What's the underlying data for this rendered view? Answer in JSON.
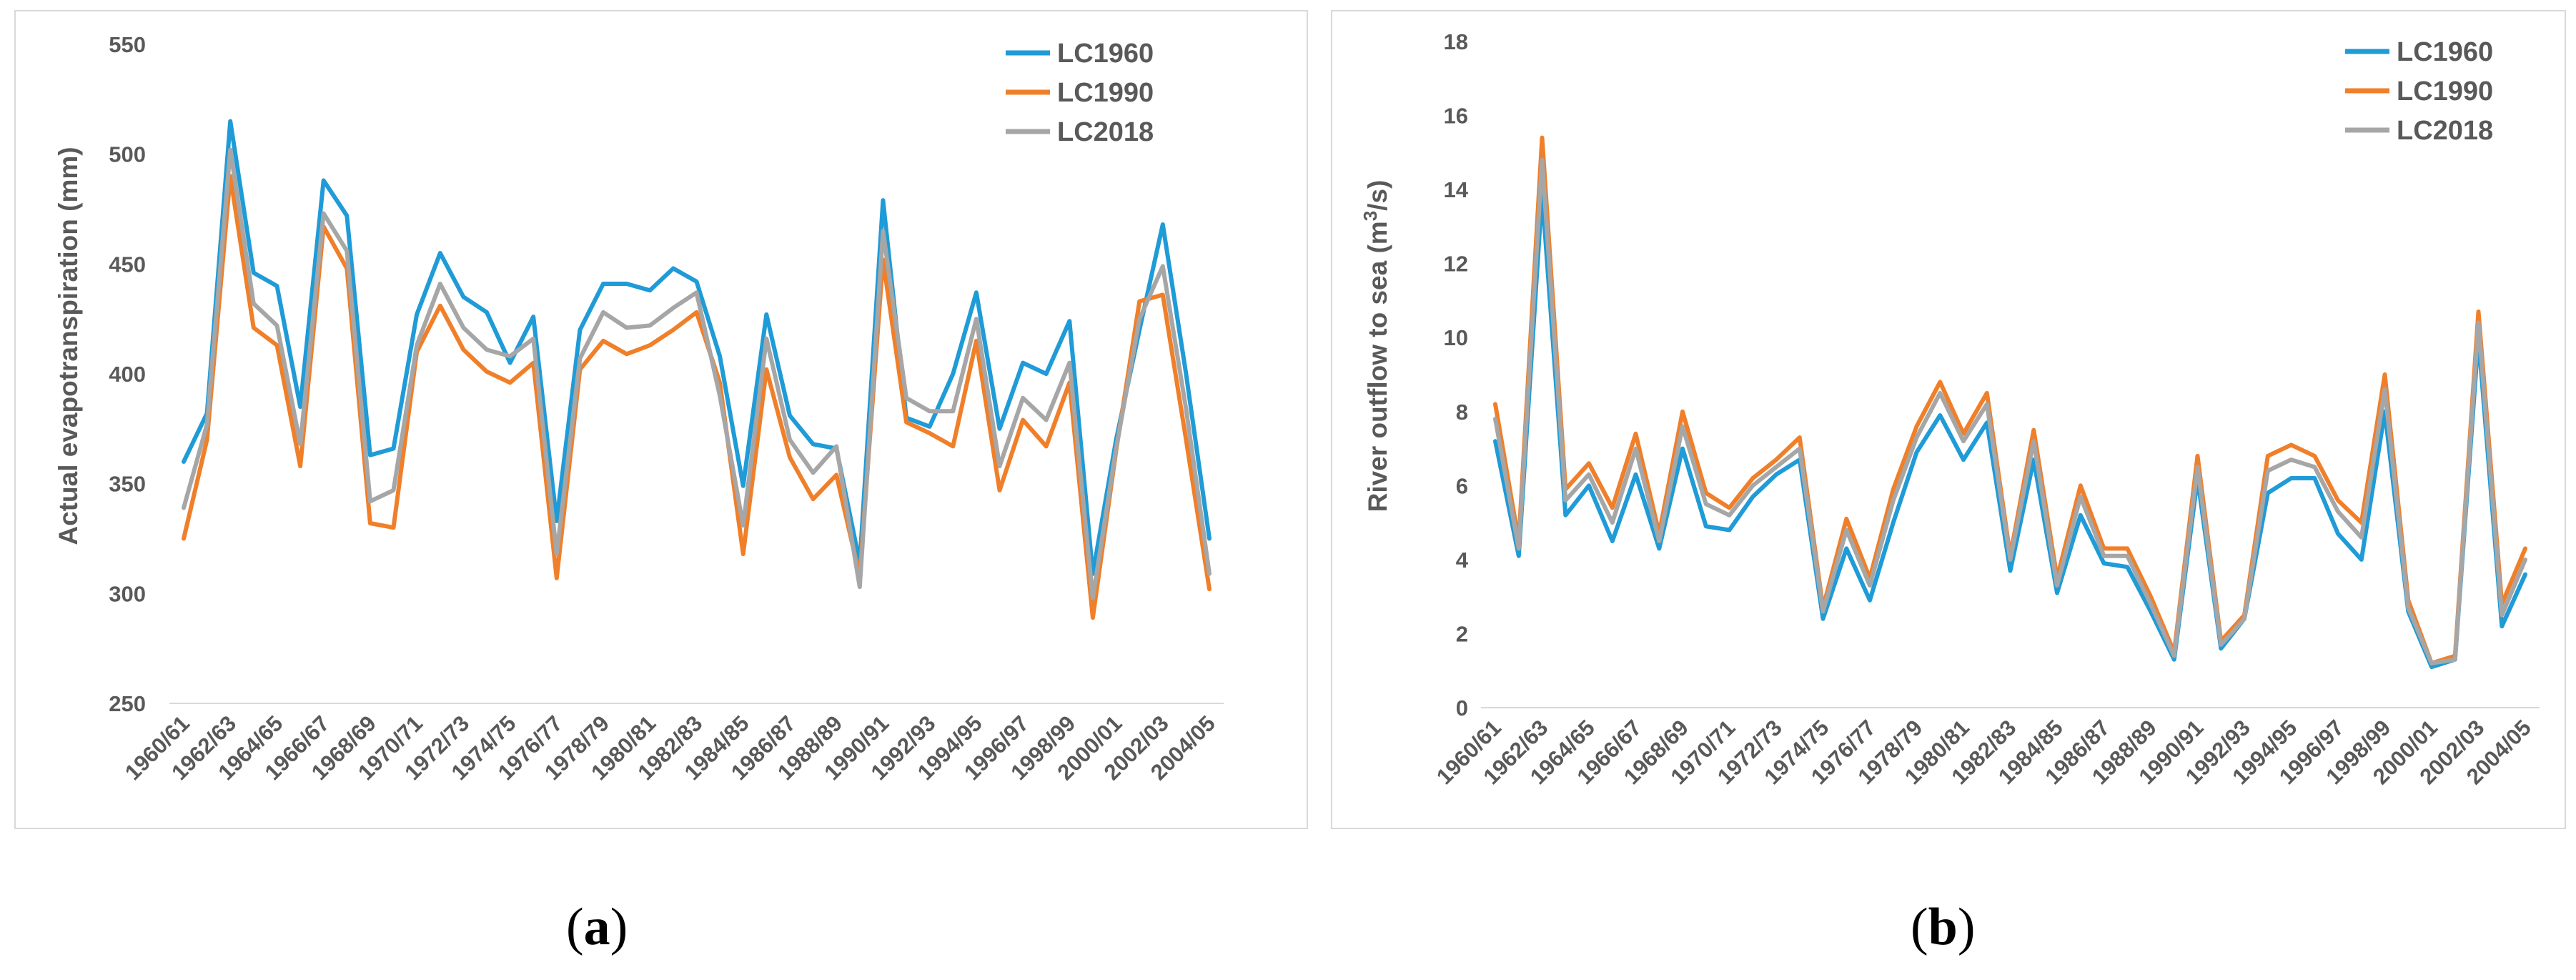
{
  "colors": {
    "LC1960": "#1f9bd7",
    "LC1990": "#f07f2a",
    "LC2018": "#a6a6a6",
    "axis": "#d9d9d9",
    "text": "#595959"
  },
  "captions": {
    "a_open": "(",
    "a_letter": "a",
    "a_close": ")",
    "b_open": "(",
    "b_letter": "b",
    "b_close": ")"
  },
  "chart_data": [
    {
      "type": "line",
      "id": "a",
      "ylabel": "Actual evapotranspiration (mm)",
      "xlabel": "",
      "ylim": [
        250,
        550
      ],
      "yticks": [
        250,
        300,
        350,
        400,
        450,
        500,
        550
      ],
      "legend_position": "top-right",
      "categories": [
        "1960/61",
        "1961/62",
        "1962/63",
        "1963/64",
        "1964/65",
        "1965/66",
        "1966/67",
        "1967/68",
        "1968/69",
        "1969/70",
        "1970/71",
        "1971/72",
        "1972/73",
        "1973/74",
        "1974/75",
        "1975/76",
        "1976/77",
        "1977/78",
        "1978/79",
        "1979/80",
        "1980/81",
        "1981/82",
        "1982/83",
        "1983/84",
        "1984/85",
        "1985/86",
        "1986/87",
        "1987/88",
        "1988/89",
        "1989/90",
        "1990/91",
        "1991/92",
        "1992/93",
        "1993/94",
        "1994/95",
        "1995/96",
        "1996/97",
        "1997/98",
        "1998/99",
        "1999/00",
        "2000/01",
        "2001/02",
        "2002/03",
        "2003/04",
        "2004/05"
      ],
      "tick_labels": [
        "1960/61",
        "1962/63",
        "1964/65",
        "1966/67",
        "1968/69",
        "1970/71",
        "1972/73",
        "1974/75",
        "1976/77",
        "1978/79",
        "1980/81",
        "1982/83",
        "1984/85",
        "1986/87",
        "1988/89",
        "1990/91",
        "1992/93",
        "1994/95",
        "1996/97",
        "1998/99",
        "2000/01",
        "2002/03",
        "2004/05"
      ],
      "series": [
        {
          "name": "LC1960",
          "values": [
            360,
            382,
            515,
            446,
            440,
            385,
            488,
            472,
            363,
            366,
            427,
            455,
            435,
            428,
            405,
            426,
            333,
            420,
            441,
            441,
            438,
            448,
            442,
            408,
            349,
            427,
            381,
            368,
            366,
            314,
            479,
            380,
            376,
            400,
            437,
            375,
            405,
            400,
            424,
            309,
            370,
            420,
            468,
            400,
            325
          ]
        },
        {
          "name": "LC1990",
          "values": [
            325,
            370,
            490,
            421,
            413,
            358,
            467,
            448,
            332,
            330,
            410,
            431,
            411,
            401,
            396,
            405,
            307,
            402,
            415,
            409,
            413,
            420,
            428,
            396,
            318,
            402,
            362,
            343,
            354,
            308,
            452,
            378,
            373,
            367,
            415,
            347,
            379,
            367,
            396,
            289,
            365,
            433,
            436,
            370,
            302
          ]
        },
        {
          "name": "LC2018",
          "values": [
            339,
            377,
            502,
            432,
            422,
            368,
            473,
            456,
            342,
            347,
            413,
            441,
            421,
            411,
            408,
            416,
            318,
            407,
            428,
            421,
            422,
            430,
            437,
            390,
            331,
            416,
            370,
            355,
            367,
            303,
            465,
            389,
            383,
            383,
            425,
            358,
            389,
            379,
            405,
            298,
            366,
            425,
            449,
            384,
            309
          ]
        }
      ]
    },
    {
      "type": "line",
      "id": "b",
      "ylabel_pre": "River outflow to sea (m",
      "ylabel_sup": "3",
      "ylabel_post": "/s)",
      "xlabel": "",
      "ylim": [
        0,
        18
      ],
      "yticks": [
        0,
        2,
        4,
        6,
        8,
        10,
        12,
        14,
        16,
        18
      ],
      "legend_position": "top-right",
      "categories": [
        "1960/61",
        "1961/62",
        "1962/63",
        "1963/64",
        "1964/65",
        "1965/66",
        "1966/67",
        "1967/68",
        "1968/69",
        "1969/70",
        "1970/71",
        "1971/72",
        "1972/73",
        "1973/74",
        "1974/75",
        "1975/76",
        "1976/77",
        "1977/78",
        "1978/79",
        "1979/80",
        "1980/81",
        "1981/82",
        "1982/83",
        "1983/84",
        "1984/85",
        "1985/86",
        "1986/87",
        "1987/88",
        "1988/89",
        "1989/90",
        "1990/91",
        "1991/92",
        "1992/93",
        "1993/94",
        "1994/95",
        "1995/96",
        "1996/97",
        "1997/98",
        "1998/99",
        "1999/00",
        "2000/01",
        "2001/02",
        "2002/03",
        "2003/04",
        "2004/05"
      ],
      "tick_labels": [
        "1960/61",
        "1962/63",
        "1964/65",
        "1966/67",
        "1968/69",
        "1970/71",
        "1972/73",
        "1974/75",
        "1976/77",
        "1978/79",
        "1980/81",
        "1982/83",
        "1984/85",
        "1986/87",
        "1988/89",
        "1990/91",
        "1992/93",
        "1994/95",
        "1996/97",
        "1998/99",
        "2000/01",
        "2002/03",
        "2004/05"
      ],
      "series": [
        {
          "name": "LC1960",
          "values": [
            7.2,
            4.1,
            13.9,
            5.2,
            6.0,
            4.5,
            6.3,
            4.3,
            7.0,
            4.9,
            4.8,
            5.7,
            6.3,
            6.7,
            2.4,
            4.3,
            2.9,
            5.0,
            6.9,
            7.9,
            6.7,
            7.7,
            3.7,
            6.7,
            3.1,
            5.2,
            3.9,
            3.8,
            2.6,
            1.3,
            6.2,
            1.6,
            2.4,
            5.8,
            6.2,
            6.2,
            4.7,
            4.0,
            8.0,
            2.6,
            1.1,
            1.3,
            10.0,
            2.2,
            3.6
          ]
        },
        {
          "name": "LC1990",
          "values": [
            8.2,
            4.5,
            15.4,
            5.9,
            6.6,
            5.4,
            7.4,
            4.7,
            8.0,
            5.8,
            5.4,
            6.2,
            6.7,
            7.3,
            2.7,
            5.1,
            3.5,
            5.9,
            7.6,
            8.8,
            7.4,
            8.5,
            4.1,
            7.5,
            3.5,
            6.0,
            4.3,
            4.3,
            3.0,
            1.5,
            6.8,
            1.8,
            2.5,
            6.8,
            7.1,
            6.8,
            5.6,
            5.0,
            9.0,
            2.9,
            1.2,
            1.4,
            10.7,
            2.8,
            4.3
          ]
        },
        {
          "name": "LC2018",
          "values": [
            7.8,
            4.3,
            14.8,
            5.6,
            6.3,
            5.0,
            7.0,
            4.5,
            7.6,
            5.5,
            5.2,
            6.0,
            6.5,
            7.0,
            2.6,
            4.8,
            3.3,
            5.6,
            7.3,
            8.5,
            7.2,
            8.2,
            4.0,
            7.2,
            3.3,
            5.7,
            4.1,
            4.1,
            2.8,
            1.4,
            6.5,
            1.7,
            2.4,
            6.4,
            6.7,
            6.5,
            5.3,
            4.6,
            8.6,
            2.7,
            1.2,
            1.3,
            10.4,
            2.5,
            4.0
          ]
        }
      ]
    }
  ]
}
